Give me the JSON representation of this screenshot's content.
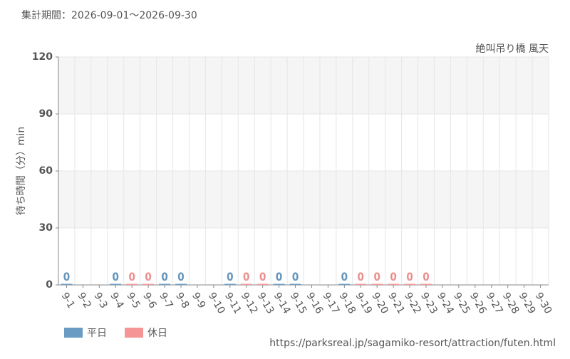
{
  "chart_data": {
    "type": "bar",
    "title": "集計期間：2026-09-01～2026-09-30",
    "subtitle": "絶叫吊り橋 風天",
    "y_label": "待ち時間（分）min",
    "source": "https://parksreal.jp/sagamiko-resort/attraction/futen.html",
    "categories": [
      "9-1",
      "9-2",
      "9-3",
      "9-4",
      "9-5",
      "9-6",
      "9-7",
      "9-8",
      "9-9",
      "9-10",
      "9-11",
      "9-12",
      "9-13",
      "9-14",
      "9-15",
      "9-16",
      "9-17",
      "9-18",
      "9-19",
      "9-20",
      "9-21",
      "9-22",
      "9-23",
      "9-24",
      "9-25",
      "9-26",
      "9-27",
      "9-28",
      "9-29",
      "9-30"
    ],
    "category_colors": [
      "#555",
      "#555",
      "#555",
      "#555",
      "#f08080",
      "#f08080",
      "#555",
      "#555",
      "#555",
      "#555",
      "#555",
      "#f08080",
      "#f08080",
      "#555",
      "#555",
      "#555",
      "#555",
      "#555",
      "#f08080",
      "#f08080",
      "#f08080",
      "#f08080",
      "#f08080",
      "#555",
      "#555",
      "#f08080",
      "#f08080",
      "#555",
      "#555",
      "#555"
    ],
    "series": [
      {
        "name": "平日",
        "color": "#6a9bc3",
        "values": [
          0,
          null,
          null,
          0,
          null,
          null,
          0,
          0,
          null,
          null,
          0,
          null,
          null,
          0,
          0,
          null,
          null,
          0,
          null,
          null,
          null,
          null,
          null,
          null,
          null,
          null,
          null,
          null,
          null,
          null
        ]
      },
      {
        "name": "休日",
        "color": "#f59595",
        "values": [
          null,
          null,
          null,
          null,
          0,
          0,
          null,
          null,
          null,
          null,
          null,
          0,
          0,
          null,
          null,
          null,
          null,
          null,
          0,
          0,
          0,
          0,
          0,
          null,
          null,
          null,
          null,
          null,
          null,
          null
        ]
      }
    ],
    "ylim": [
      0,
      120
    ],
    "yticks": [
      0,
      30,
      60,
      90,
      120
    ],
    "grid": true
  }
}
